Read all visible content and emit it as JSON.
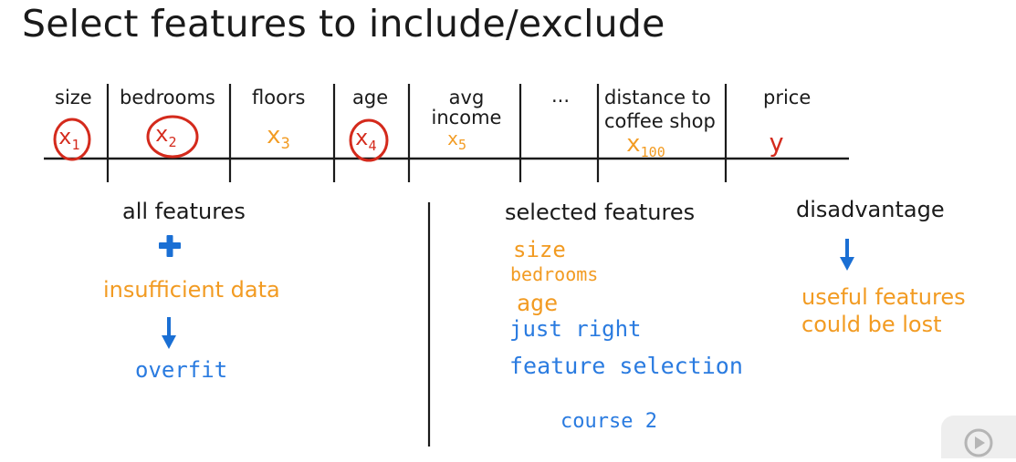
{
  "title": "Select features to include/exclude",
  "table": {
    "headers": [
      {
        "key": "size",
        "label": "size"
      },
      {
        "key": "bedrooms",
        "label": "bedrooms"
      },
      {
        "key": "floors",
        "label": "floors"
      },
      {
        "key": "age",
        "label": "age"
      },
      {
        "key": "avg_income",
        "label_l1": "avg",
        "label_l2": "income"
      },
      {
        "key": "ellipsis",
        "label": "..."
      },
      {
        "key": "distance",
        "label_l1": "distance to",
        "label_l2": "coffee shop"
      },
      {
        "key": "price",
        "label": "price"
      }
    ],
    "symbols": {
      "x1": {
        "base": "x",
        "sub": "1",
        "circled": true
      },
      "x2": {
        "base": "x",
        "sub": "2",
        "circled": true
      },
      "x3": {
        "base": "x",
        "sub": "3",
        "circled": false
      },
      "x4": {
        "base": "x",
        "sub": "4",
        "circled": true
      },
      "x5": {
        "base": "x",
        "sub": "5",
        "circled": false
      },
      "x100": {
        "base": "x",
        "sub": "100",
        "circled": false
      },
      "y": {
        "base": "y",
        "sub": ""
      }
    }
  },
  "left": {
    "heading": "all features",
    "plus": "+",
    "insufficient": "insufficient data",
    "overfit": "overfit"
  },
  "middle": {
    "heading": "selected features",
    "items": [
      "size",
      "bedrooms",
      "age"
    ],
    "just_right": "just right",
    "feature_selection": "feature selection",
    "course": "course 2"
  },
  "right": {
    "heading": "disadvantage",
    "lost_l1": "useful features",
    "lost_l2": "could be lost"
  },
  "colors": {
    "orange": "#f29b22",
    "blue": "#1a6fd4",
    "circle_red": "#d42a1c",
    "y_red": "#d42a1c",
    "ink": "#1a1a1a"
  },
  "icons": [
    "plus-icon",
    "down-arrow-icon",
    "play-icon"
  ]
}
